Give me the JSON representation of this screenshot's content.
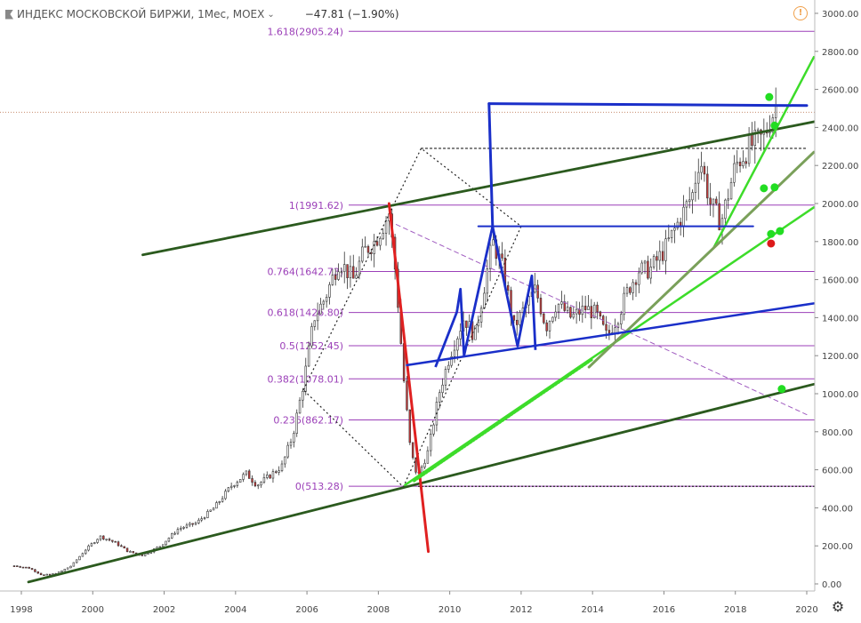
{
  "header": {
    "title": "ИНДЕКС МОСКОВСКОЙ БИРЖИ, 1Мес, MOEX",
    "change": "−47.81 (−1.90%)",
    "flag_icon": "flag-icon",
    "dropdown_icon": "chevron-down-icon",
    "warning_icon": "warning-icon",
    "settings_icon": "gear-icon"
  },
  "colors": {
    "bull_candle": "#ffffff",
    "bear_candle": "#cc3b3b",
    "candle_outline": "#333333",
    "fib_line": "#9b3fb8",
    "fib_label": "#9b3fb8",
    "dark_green": "#2b5a1e",
    "light_green": "#3ddc2a",
    "olive_green": "#7aa05a",
    "blue": "#1a2fc9",
    "red": "#e02020",
    "dotted": "#222222"
  },
  "chart_data": {
    "type": "candlestick",
    "title": "ИНДЕКС МОСКОВСКОЙ БИРЖИ, 1Мес, MOEX",
    "ylim": [
      0,
      3000
    ],
    "xlim": [
      1997.75,
      2020.0
    ],
    "y_ticks": [
      "3000.00",
      "2800.00",
      "2600.00",
      "2400.00",
      "2200.00",
      "2000.00",
      "1800.00",
      "1600.00",
      "1400.00",
      "1200.00",
      "1000.00",
      "800.00",
      "600.00",
      "400.00",
      "200.00",
      "0.00"
    ],
    "x_ticks": [
      "1998",
      "2000",
      "2002",
      "2004",
      "2006",
      "2008",
      "2010",
      "2012",
      "2014",
      "2016",
      "2018",
      "2020"
    ],
    "fib_levels": [
      {
        "label": "1.618(2905.24)",
        "value": 2905.24
      },
      {
        "label": "1(1991.62)",
        "value": 1991.62
      },
      {
        "label": "0.764(1642.73)",
        "value": 1642.73
      },
      {
        "label": "0.618(1426.80)",
        "value": 1426.8
      },
      {
        "label": "0.5(1252.45)",
        "value": 1252.45
      },
      {
        "label": "0.382(1078.01)",
        "value": 1078.01
      },
      {
        "label": "0.236(862.17)",
        "value": 862.17
      },
      {
        "label": "0(513.28)",
        "value": 513.28
      }
    ],
    "price_path": [
      [
        1997.8,
        95
      ],
      [
        1998.2,
        85
      ],
      [
        1998.6,
        45
      ],
      [
        1999.0,
        55
      ],
      [
        1999.4,
        95
      ],
      [
        1999.8,
        180
      ],
      [
        2000.2,
        250
      ],
      [
        2000.6,
        220
      ],
      [
        2001.0,
        170
      ],
      [
        2001.4,
        150
      ],
      [
        2001.9,
        200
      ],
      [
        2002.4,
        290
      ],
      [
        2002.9,
        320
      ],
      [
        2003.4,
        400
      ],
      [
        2003.9,
        520
      ],
      [
        2004.3,
        580
      ],
      [
        2004.6,
        520
      ],
      [
        2004.9,
        560
      ],
      [
        2005.3,
        620
      ],
      [
        2005.6,
        780
      ],
      [
        2005.9,
        1050
      ],
      [
        2006.2,
        1400
      ],
      [
        2006.5,
        1500
      ],
      [
        2006.9,
        1700
      ],
      [
        2007.3,
        1600
      ],
      [
        2007.6,
        1750
      ],
      [
        2007.9,
        1800
      ],
      [
        2008.3,
        1950
      ],
      [
        2008.5,
        1600
      ],
      [
        2008.7,
        1100
      ],
      [
        2008.9,
        700
      ],
      [
        2009.1,
        560
      ],
      [
        2009.4,
        700
      ],
      [
        2009.7,
        1000
      ],
      [
        2010.0,
        1200
      ],
      [
        2010.4,
        1400
      ],
      [
        2010.7,
        1300
      ],
      [
        2011.0,
        1600
      ],
      [
        2011.2,
        1800
      ],
      [
        2011.5,
        1650
      ],
      [
        2011.8,
        1350
      ],
      [
        2012.1,
        1450
      ],
      [
        2012.4,
        1550
      ],
      [
        2012.7,
        1350
      ],
      [
        2013.0,
        1480
      ],
      [
        2013.4,
        1400
      ],
      [
        2013.8,
        1450
      ],
      [
        2014.1,
        1420
      ],
      [
        2014.4,
        1300
      ],
      [
        2014.7,
        1400
      ],
      [
        2015.0,
        1550
      ],
      [
        2015.3,
        1650
      ],
      [
        2015.6,
        1650
      ],
      [
        2016.0,
        1750
      ],
      [
        2016.4,
        1900
      ],
      [
        2016.8,
        2050
      ],
      [
        2017.0,
        2250
      ],
      [
        2017.3,
        2000
      ],
      [
        2017.6,
        1900
      ],
      [
        2018.0,
        2200
      ],
      [
        2018.4,
        2300
      ],
      [
        2018.8,
        2350
      ],
      [
        2019.0,
        2450
      ],
      [
        2019.15,
        2520
      ]
    ],
    "dots": [
      {
        "x": 2018.95,
        "y": 2560,
        "color": "green"
      },
      {
        "x": 2019.1,
        "y": 2410,
        "color": "green"
      },
      {
        "x": 2018.8,
        "y": 2080,
        "color": "green"
      },
      {
        "x": 2019.1,
        "y": 2085,
        "color": "green"
      },
      {
        "x": 2019.0,
        "y": 1840,
        "color": "green"
      },
      {
        "x": 2019.25,
        "y": 1855,
        "color": "green"
      },
      {
        "x": 2019.0,
        "y": 1790,
        "color": "red"
      },
      {
        "x": 2019.3,
        "y": 1025,
        "color": "green"
      }
    ]
  }
}
